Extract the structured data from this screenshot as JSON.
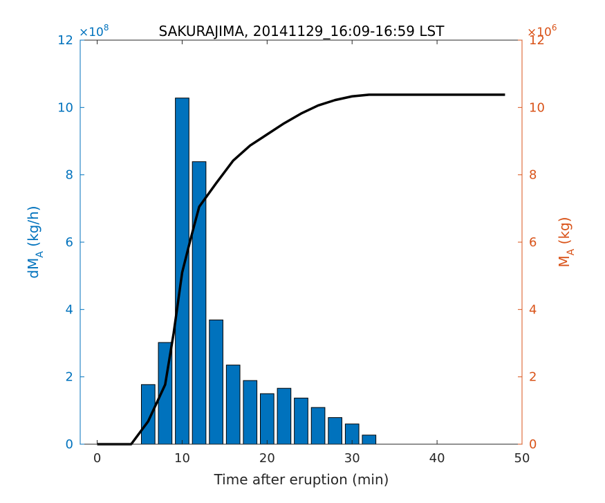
{
  "chart_data": {
    "type": "bar",
    "title": "SAKURAJIMA, 20141129_16:09-16:59 LST",
    "xlabel": "Time after eruption (min)",
    "xlim": [
      -2,
      50
    ],
    "xticks": [
      0,
      10,
      20,
      30,
      40,
      50
    ],
    "left_axis": {
      "label_main": "dM",
      "label_sub": "A",
      "label_unit": " (kg/h)",
      "exponent_text": "×10",
      "exponent_power": "8",
      "ylim": [
        0,
        12
      ],
      "yticks": [
        0,
        2,
        4,
        6,
        8,
        10,
        12
      ],
      "color": "#0072BD"
    },
    "right_axis": {
      "label_main": "M",
      "label_sub": "A",
      "label_unit": " (kg)",
      "exponent_text": "×10",
      "exponent_power": "6",
      "ylim": [
        0,
        12
      ],
      "yticks": [
        0,
        2,
        4,
        6,
        8,
        10,
        12
      ],
      "color": "#D95319"
    },
    "bar_width": 1.6,
    "bars": {
      "x": [
        6,
        8,
        10,
        12,
        14,
        16,
        18,
        20,
        22,
        24,
        26,
        28,
        30,
        32
      ],
      "values": [
        1.77,
        3.02,
        10.28,
        8.39,
        3.69,
        2.35,
        1.89,
        1.5,
        1.66,
        1.37,
        1.09,
        0.79,
        0.6,
        0.27
      ],
      "color": "#0072BD"
    },
    "line": {
      "x": [
        0,
        2,
        4,
        6,
        8,
        9,
        10,
        11,
        12,
        13,
        14,
        16,
        18,
        20,
        22,
        24,
        26,
        28,
        30,
        32,
        34,
        36,
        40,
        44,
        48
      ],
      "values": [
        0,
        0,
        0,
        0.68,
        1.77,
        3.3,
        5.1,
        6.1,
        7.05,
        7.4,
        7.75,
        8.42,
        8.87,
        9.2,
        9.53,
        9.82,
        10.06,
        10.22,
        10.33,
        10.38,
        10.38,
        10.38,
        10.38,
        10.38,
        10.38
      ],
      "color": "#000000"
    }
  }
}
